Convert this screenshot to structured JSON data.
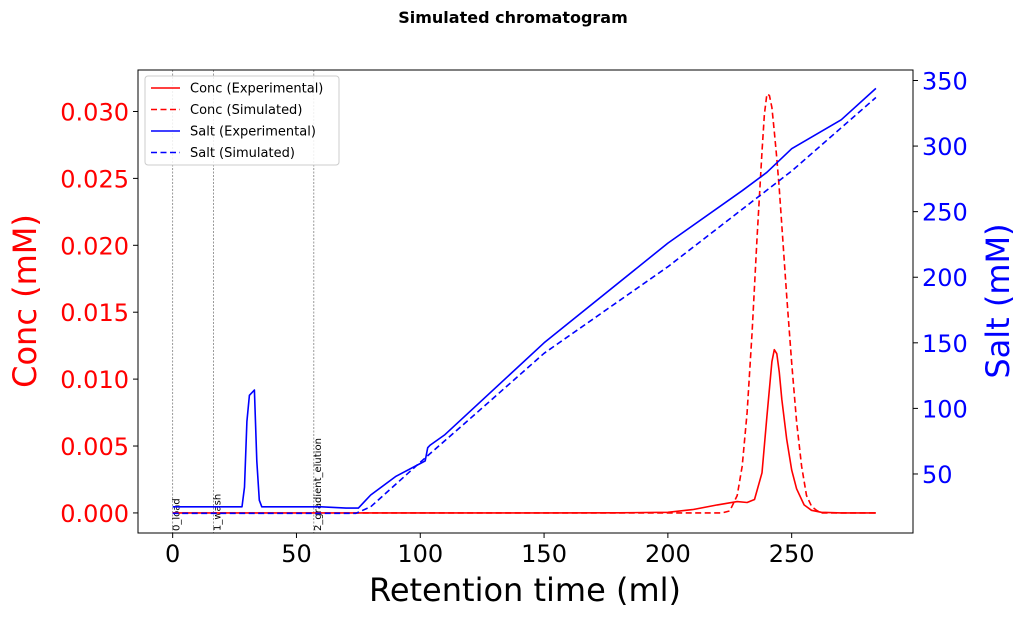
{
  "chart_data": {
    "type": "line",
    "title": "Simulated chromatogram",
    "xlabel": "Retention time (ml)",
    "ylabel_left": "Conc (mM)",
    "ylabel_right": "Salt (mM)",
    "left_axis_color": "#ff0000",
    "right_axis_color": "#0000ff",
    "xlim": [
      -14,
      299
    ],
    "ylim_left": [
      -0.0015,
      0.0331
    ],
    "ylim_right": [
      5,
      358
    ],
    "x_ticks": [
      0,
      50,
      100,
      150,
      200,
      250
    ],
    "x_tick_labels": [
      "0",
      "50",
      "100",
      "150",
      "200",
      "250"
    ],
    "y_left_ticks": [
      0.0,
      0.005,
      0.01,
      0.015,
      0.02,
      0.025,
      0.03
    ],
    "y_left_tick_labels": [
      "0.000",
      "0.005",
      "0.010",
      "0.015",
      "0.020",
      "0.025",
      "0.030"
    ],
    "y_right_ticks": [
      50,
      100,
      150,
      200,
      250,
      300,
      350
    ],
    "y_right_tick_labels": [
      "50",
      "100",
      "150",
      "200",
      "250",
      "300",
      "350"
    ],
    "grid": false,
    "legend_position": "top-left",
    "events": [
      {
        "x": 0,
        "label": "0_load"
      },
      {
        "x": 16.5,
        "label": "1_wash"
      },
      {
        "x": 57,
        "label": "2_gradient_elution"
      }
    ],
    "series": [
      {
        "name": "Conc (Experimental)",
        "axis": "left",
        "color": "#ff0000",
        "dash": "solid",
        "x": [
          0,
          50,
          100,
          150,
          180,
          200,
          210,
          220,
          228,
          232,
          235,
          238,
          240,
          242,
          243,
          244,
          245,
          246,
          248,
          250,
          252,
          255,
          258,
          262,
          270,
          284
        ],
        "y": [
          0.0,
          0.0,
          0.0,
          0.0,
          1e-05,
          5e-05,
          0.00025,
          0.0006,
          0.00085,
          0.00078,
          0.001,
          0.003,
          0.0072,
          0.0113,
          0.0122,
          0.0119,
          0.0105,
          0.0085,
          0.0055,
          0.0032,
          0.0018,
          0.0006,
          0.0002,
          5e-05,
          0.0,
          0.0
        ]
      },
      {
        "name": "Conc (Simulated)",
        "axis": "left",
        "color": "#ff0000",
        "dash": "dashed",
        "x": [
          0,
          50,
          100,
          150,
          200,
          222,
          225,
          228,
          230,
          232,
          234,
          236,
          238,
          239,
          240,
          241,
          242,
          243,
          244,
          245,
          246,
          248,
          250,
          252,
          254,
          256,
          258,
          260,
          262,
          284
        ],
        "y": [
          0.0,
          0.0,
          0.0,
          0.0,
          0.0,
          0.0,
          0.00015,
          0.0013,
          0.0035,
          0.0075,
          0.0135,
          0.0205,
          0.027,
          0.0298,
          0.0313,
          0.0312,
          0.0303,
          0.0285,
          0.0265,
          0.0242,
          0.0215,
          0.0162,
          0.0112,
          0.0068,
          0.0035,
          0.0013,
          0.0005,
          0.0002,
          0.0,
          0.0
        ]
      },
      {
        "name": "Salt (Experimental)",
        "axis": "right",
        "color": "#0000ff",
        "dash": "solid",
        "x": [
          0,
          10,
          20,
          28,
          29,
          30,
          31,
          32,
          33,
          34,
          35,
          36,
          40,
          50,
          60,
          70,
          75,
          78,
          80,
          90,
          100,
          102,
          103,
          104,
          110,
          150,
          200,
          230,
          240,
          250,
          270,
          284
        ],
        "y": [
          25,
          25,
          25,
          25,
          40,
          90,
          110,
          112,
          114,
          60,
          30,
          25,
          25,
          25,
          25,
          24,
          24,
          30,
          34,
          48,
          58,
          60,
          70,
          72,
          80,
          150,
          226,
          266,
          280,
          298,
          320,
          344
        ]
      },
      {
        "name": "Salt (Simulated)",
        "axis": "right",
        "color": "#0000ff",
        "dash": "dashed",
        "x": [
          0,
          50,
          74,
          80,
          100,
          120,
          150,
          200,
          250,
          284
        ],
        "y": [
          20,
          20,
          20,
          25,
          59,
          92,
          142,
          208,
          281,
          337
        ]
      }
    ]
  }
}
